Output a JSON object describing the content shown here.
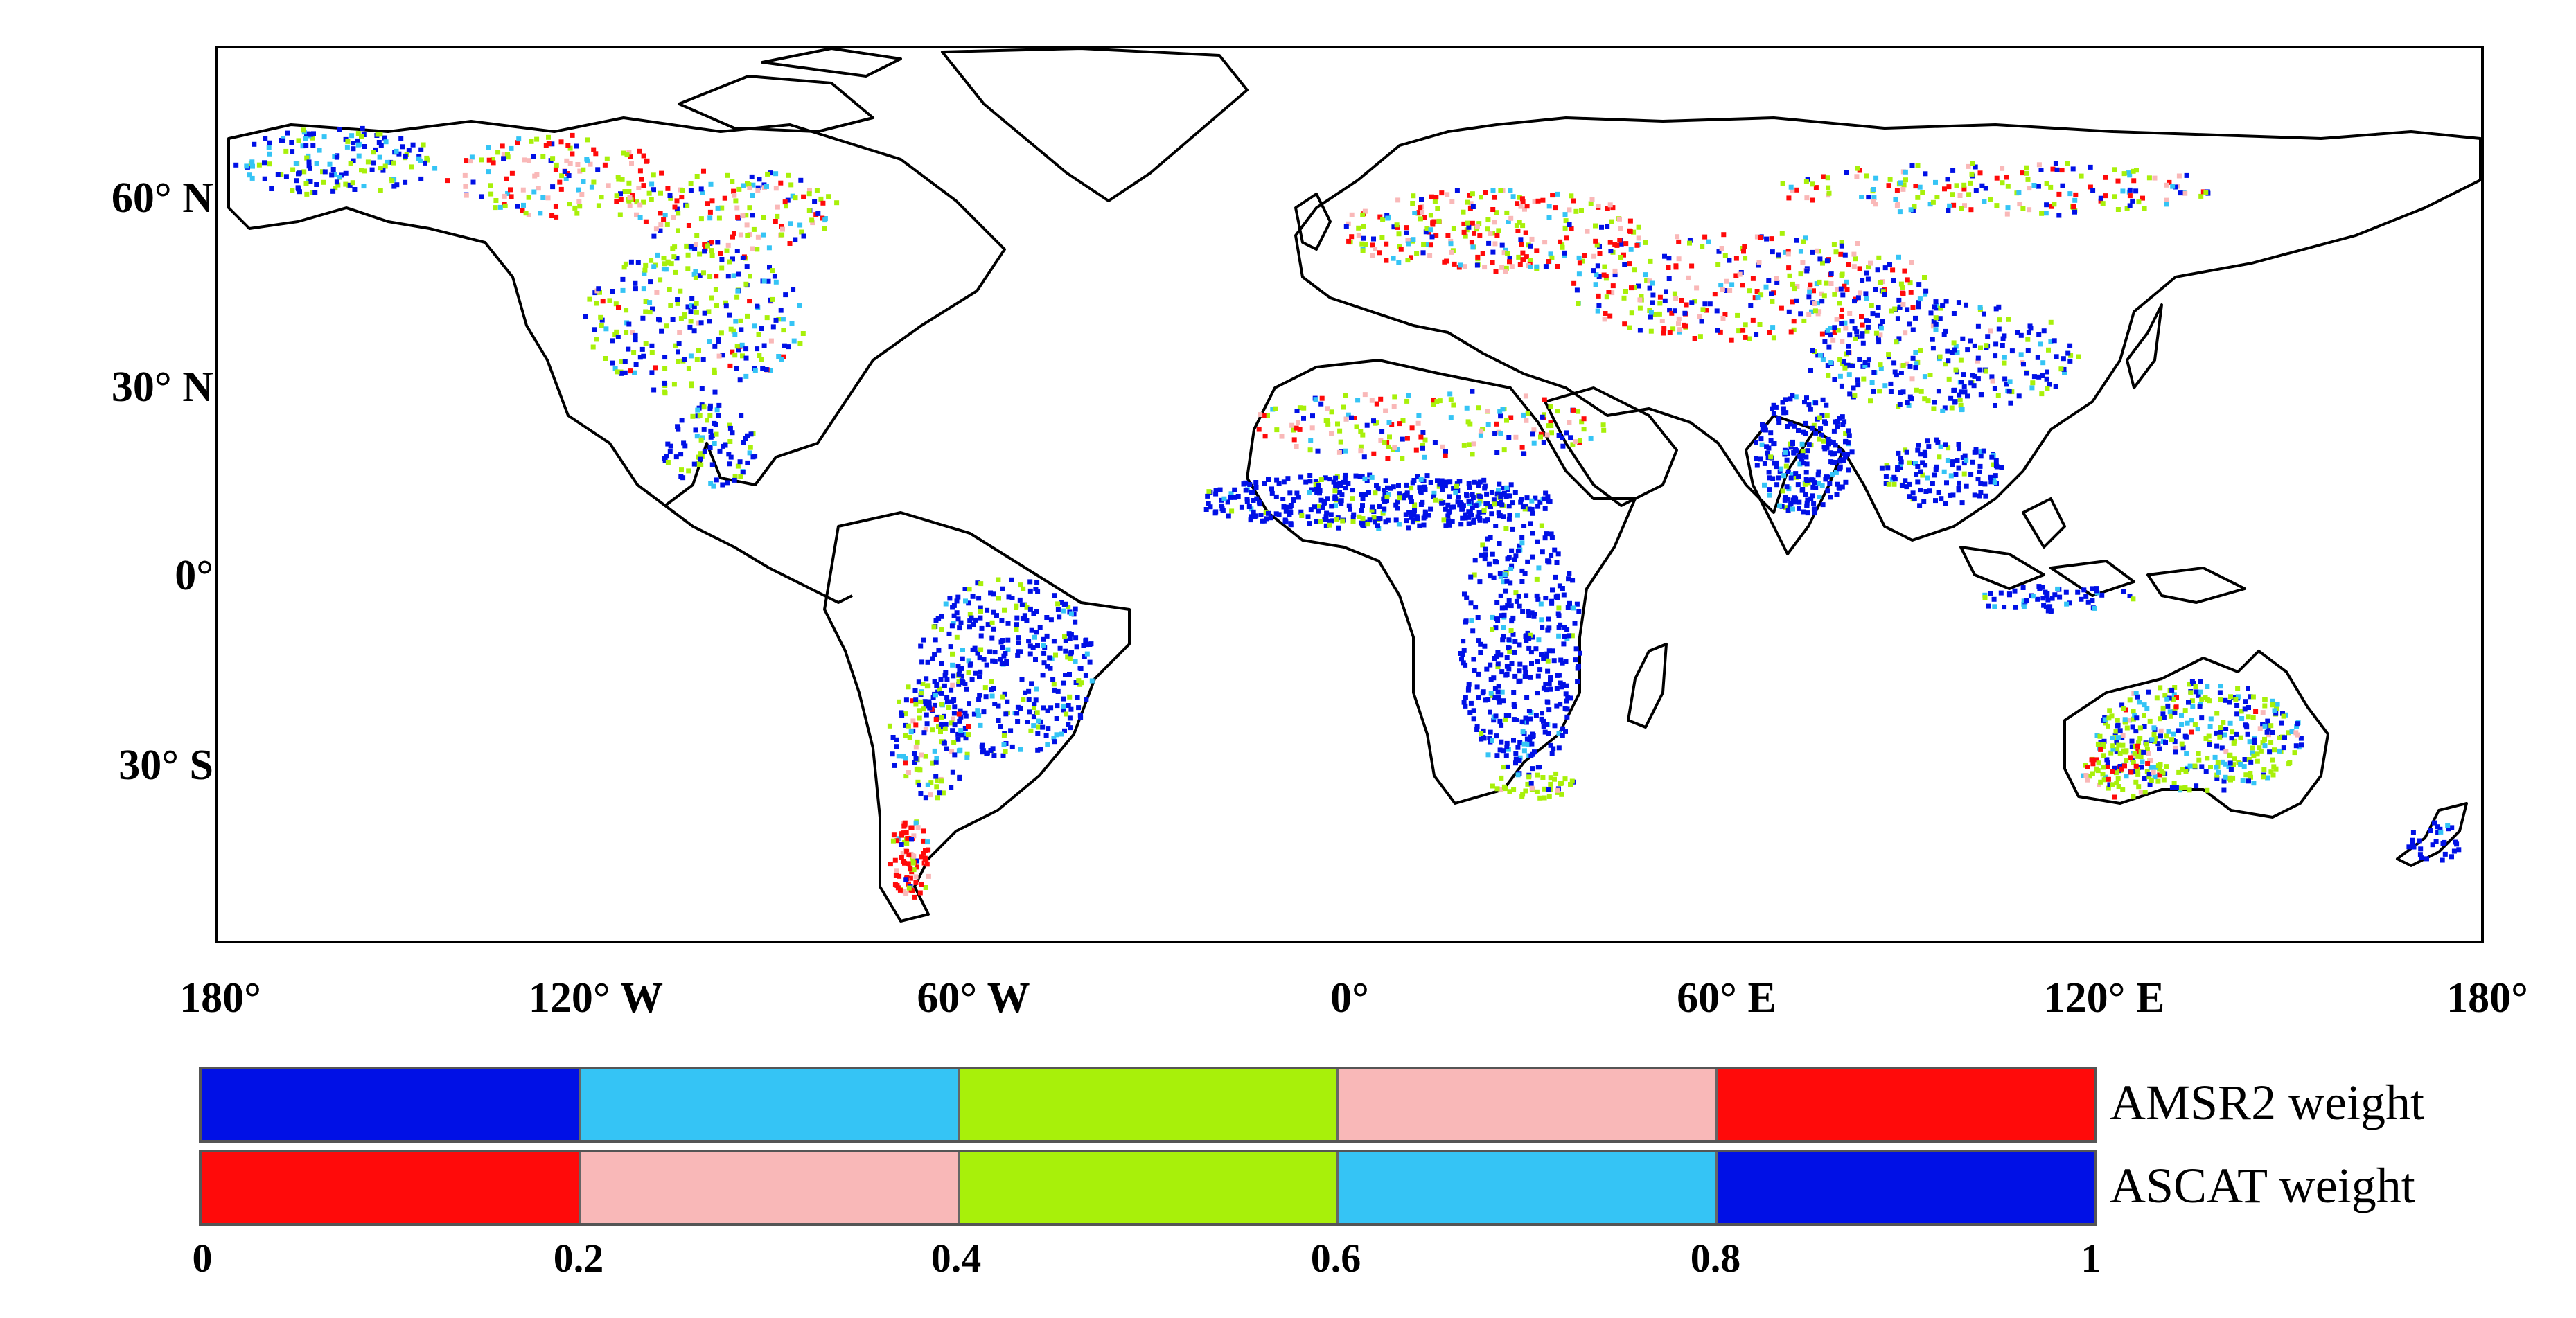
{
  "map": {
    "axis": {
      "lat_labels": [
        "60° N",
        "30° N",
        "0°",
        "30° S"
      ],
      "lon_labels": [
        "180°",
        "120° W",
        "60° W",
        "0°",
        "60° E",
        "120° E",
        "180°"
      ]
    },
    "colors": {
      "c1": "#0010e6",
      "c2": "#35c4f5",
      "c3": "#a8f00a",
      "c4": "#f9b8b8",
      "c5": "#ff0a0a",
      "land_outline": "#000000"
    }
  },
  "legend": {
    "rows": [
      {
        "name": "AMSR2 weight",
        "colors": [
          "#0010e6",
          "#35c4f5",
          "#a8f00a",
          "#f9b8b8",
          "#ff0a0a"
        ]
      },
      {
        "name": "ASCAT weight",
        "colors": [
          "#ff0a0a",
          "#f9b8b8",
          "#a8f00a",
          "#35c4f5",
          "#0010e6"
        ]
      }
    ],
    "ticks": [
      "0",
      "0.2",
      "0.4",
      "0.6",
      "0.8",
      "1"
    ]
  }
}
